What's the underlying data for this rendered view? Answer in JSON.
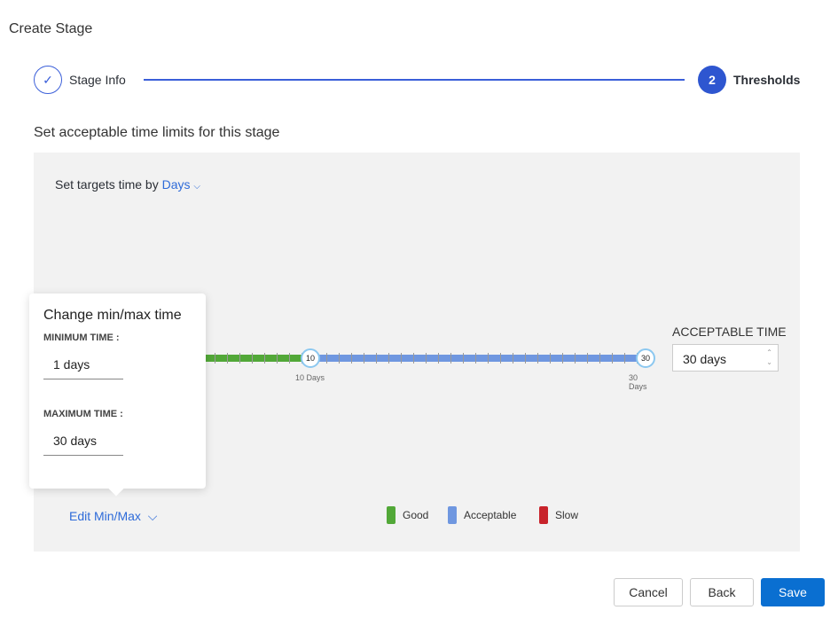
{
  "title": "Create Stage",
  "steps": [
    {
      "label": "Stage Info",
      "state": "complete",
      "icon": "check-icon"
    },
    {
      "number": "2",
      "label": "Thresholds",
      "state": "active"
    }
  ],
  "subtitle": "Set acceptable time limits for this stage",
  "targets": {
    "prefix": "Set targets time by",
    "unit": "Days"
  },
  "slider": {
    "min": 1,
    "max": 30,
    "good_until": 10,
    "acceptable_until": 30,
    "knob1": "10",
    "knob2": "30",
    "label1": "10 Days",
    "label2": "30 Days",
    "colors": {
      "good": "#52a838",
      "acceptable": "#6f97e0",
      "slow": "#c8232b"
    }
  },
  "acceptable": {
    "label": "ACCEPTABLE TIME",
    "value": "30 days"
  },
  "popover": {
    "title": "Change min/max time",
    "min_label": "MINIMUM TIME :",
    "min_value": "1 days",
    "max_label": "MAXIMUM TIME :",
    "max_value": "30 days"
  },
  "edit_label": "Edit Min/Max",
  "legend": [
    {
      "label": "Good",
      "color": "#52a838"
    },
    {
      "label": "Acceptable",
      "color": "#6f97e0"
    },
    {
      "label": "Slow",
      "color": "#c8232b"
    }
  ],
  "buttons": {
    "cancel": "Cancel",
    "back": "Back",
    "save": "Save"
  }
}
